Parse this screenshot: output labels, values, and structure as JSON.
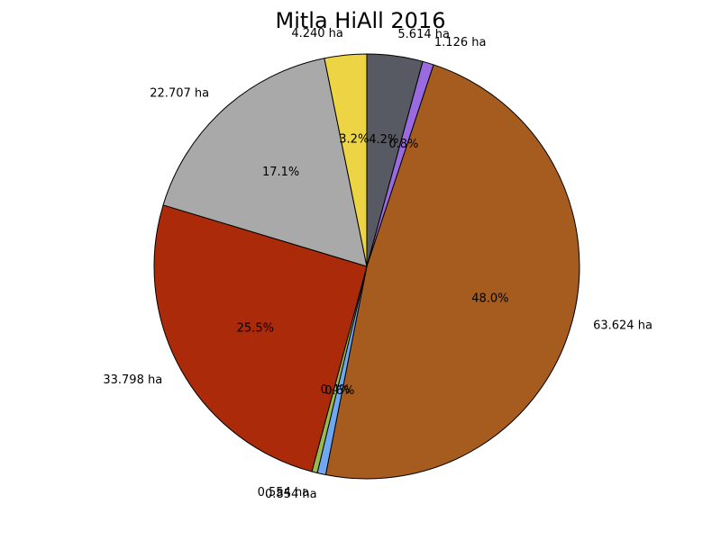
{
  "chart_data": {
    "type": "pie",
    "title": "Mitla HiAll 2016",
    "unit": "ha",
    "slices": [
      {
        "label": "5.614 ha",
        "value": 5.614,
        "pct_label": "4.2%",
        "color": "#575a62"
      },
      {
        "label": "1.126 ha",
        "value": 1.126,
        "pct_label": "0.8%",
        "color": "#9a6ae0"
      },
      {
        "label": "63.624 ha",
        "value": 63.624,
        "pct_label": "48.0%",
        "color": "#a65c1e"
      },
      {
        "label": "0.854 ha",
        "value": 0.854,
        "pct_label": "0.6%",
        "color": "#6fa8f0"
      },
      {
        "label": "0.554 ha",
        "value": 0.554,
        "pct_label": "0.4%",
        "color": "#98b94c"
      },
      {
        "label": "33.798 ha",
        "value": 33.798,
        "pct_label": "25.5%",
        "color": "#ab2a0a"
      },
      {
        "label": "22.707 ha",
        "value": 22.707,
        "pct_label": "17.1%",
        "color": "#a8a9a8"
      },
      {
        "label": "4.240 ha",
        "value": 4.24,
        "pct_label": "3.2%",
        "color": "#ecd444"
      }
    ],
    "start_angle_deg": 90,
    "direction": "clockwise",
    "edge_color": "#000000"
  }
}
